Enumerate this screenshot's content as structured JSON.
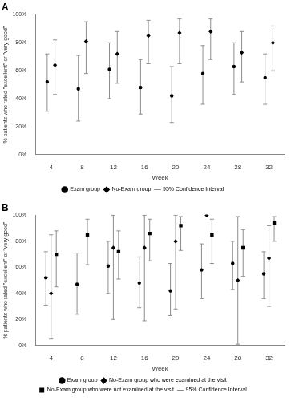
{
  "chart_data": [
    {
      "type": "bar",
      "title": "A",
      "x_label": "Week",
      "y_label": "% patients who rated \"excellent\" or \"very good\"",
      "categories": [
        4,
        8,
        12,
        16,
        20,
        24,
        28,
        32
      ],
      "ylim": [
        0,
        100
      ],
      "yticks": [
        {
          "value": 0,
          "label": "0%"
        },
        {
          "value": 20,
          "label": "20%"
        },
        {
          "value": 40,
          "label": "40%"
        },
        {
          "value": 60,
          "label": "60%"
        },
        {
          "value": 80,
          "label": "80%"
        },
        {
          "value": 100,
          "label": "100%"
        }
      ],
      "grid": false,
      "legend": "bottom",
      "interval_label": "95% Confidence Interval",
      "series": [
        {
          "name": "Exam group",
          "color": "#000000",
          "marker": "circle",
          "values": [
            52,
            47,
            61,
            48,
            42,
            58,
            63,
            55
          ],
          "lower": [
            31,
            24,
            40,
            29,
            23,
            36,
            43,
            36
          ],
          "upper": [
            72,
            71,
            80,
            68,
            63,
            78,
            80,
            72
          ]
        },
        {
          "name": "No-Exam group",
          "color": "#000000",
          "marker": "diamond",
          "values": [
            64,
            81,
            72,
            85,
            87,
            88,
            73,
            80
          ],
          "lower": [
            43,
            58,
            51,
            65,
            65,
            68,
            52,
            60
          ],
          "upper": [
            82,
            95,
            88,
            96,
            97,
            97,
            88,
            92
          ]
        }
      ]
    },
    {
      "type": "bar",
      "title": "B",
      "x_label": "Week",
      "y_label": "% patients who rated \"excellent\" or \"very good\"",
      "categories": [
        4,
        8,
        12,
        16,
        20,
        24,
        28,
        32
      ],
      "ylim": [
        0,
        100
      ],
      "yticks": [
        {
          "value": 0,
          "label": "0%"
        },
        {
          "value": 20,
          "label": "20%"
        },
        {
          "value": 40,
          "label": "40%"
        },
        {
          "value": 60,
          "label": "60%"
        },
        {
          "value": 80,
          "label": "80%"
        },
        {
          "value": 100,
          "label": "100%"
        }
      ],
      "grid": false,
      "legend": "bottom",
      "interval_label": "95% Confidence Interval",
      "series": [
        {
          "name": "Exam group",
          "color": "#000000",
          "marker": "circle",
          "values": [
            52,
            47,
            61,
            48,
            42,
            58,
            63,
            55
          ],
          "lower": [
            31,
            24,
            40,
            29,
            23,
            36,
            43,
            36
          ],
          "upper": [
            72,
            71,
            80,
            68,
            63,
            78,
            80,
            72
          ]
        },
        {
          "name": "No-Exam group who were examined at the visit",
          "color": "#000000",
          "marker": "diamond",
          "values": [
            40,
            null,
            75,
            75,
            80,
            100,
            50,
            67
          ],
          "lower": [
            5,
            null,
            20,
            19,
            28,
            null,
            1,
            30
          ],
          "upper": [
            85,
            null,
            100,
            100,
            100,
            null,
            99,
            92
          ]
        },
        {
          "name": "No-Exam group who were not examined at the visit",
          "color": "#000000",
          "marker": "square",
          "values": [
            70,
            85,
            72,
            86,
            92,
            85,
            75,
            94
          ],
          "lower": [
            45,
            62,
            51,
            65,
            73,
            63,
            53,
            80
          ],
          "upper": [
            88,
            97,
            88,
            97,
            99,
            97,
            89,
            99
          ]
        }
      ]
    }
  ]
}
